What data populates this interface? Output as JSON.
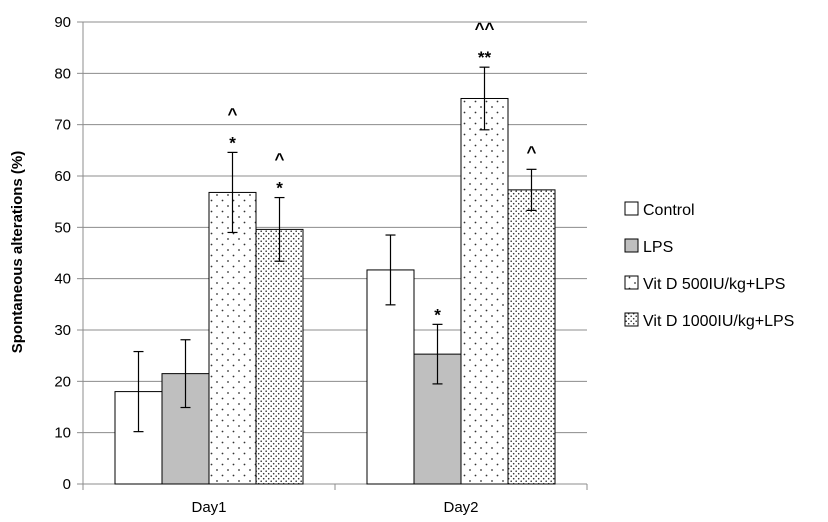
{
  "chart_data": {
    "type": "bar",
    "title": "",
    "xlabel": "",
    "ylabel": "Spontaneous alterations (%)",
    "ylim": [
      0,
      90
    ],
    "yticks": [
      0,
      10,
      20,
      30,
      40,
      50,
      60,
      70,
      80,
      90
    ],
    "grid": "horizontal",
    "legend_position": "right",
    "categories": [
      "Day1",
      "Day2"
    ],
    "series": [
      {
        "name": "Control",
        "fill": "white",
        "values": [
          18,
          41.7
        ],
        "errors": [
          7.8,
          6.8
        ],
        "sig": [
          "",
          ""
        ]
      },
      {
        "name": "LPS",
        "fill": "gray",
        "color": "#bfbfbf",
        "values": [
          21.5,
          25.3
        ],
        "errors": [
          6.6,
          5.8
        ],
        "sig": [
          "",
          "*"
        ]
      },
      {
        "name": "Vit D 500IU/kg+LPS",
        "fill": "sparse-dots",
        "values": [
          56.8,
          75.1
        ],
        "errors": [
          7.8,
          6.1
        ],
        "sig": [
          "*|^",
          "**|^^"
        ]
      },
      {
        "name": "Vit D 1000IU/kg+LPS",
        "fill": "dense-dots",
        "values": [
          49.6,
          57.3
        ],
        "errors": [
          6.2,
          4.0
        ],
        "sig": [
          "*|^",
          "^"
        ]
      }
    ]
  }
}
